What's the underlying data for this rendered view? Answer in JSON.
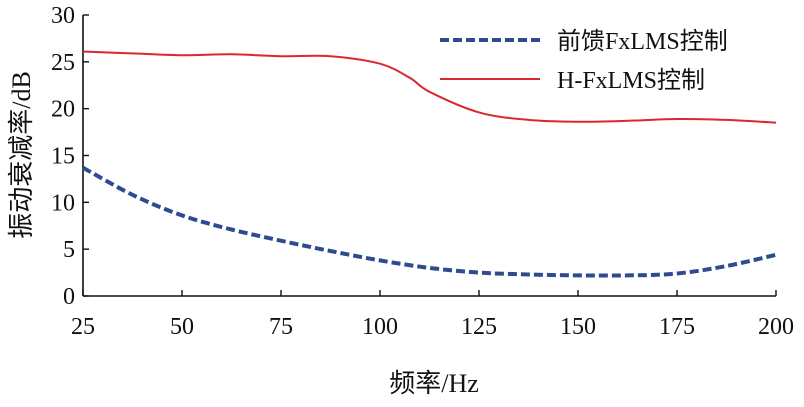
{
  "chart_data": {
    "type": "line",
    "xlabel": "频率/Hz",
    "ylabel": "振动衰减率/dB",
    "xlim": [
      25,
      200
    ],
    "ylim": [
      0,
      30
    ],
    "xticks": [
      25,
      50,
      75,
      100,
      125,
      150,
      175,
      200
    ],
    "yticks": [
      0,
      5,
      10,
      15,
      20,
      25,
      30
    ],
    "grid": false,
    "legend_position": "top-right",
    "series": [
      {
        "name": "前馈FxLMS控制",
        "color": "#2e4b8f",
        "style": "dashed",
        "x": [
          25,
          37.5,
          50,
          62.5,
          75,
          87.5,
          100,
          112.5,
          125,
          137.5,
          150,
          162.5,
          175,
          187.5,
          200
        ],
        "y": [
          13.7,
          10.8,
          8.6,
          7.1,
          5.9,
          4.8,
          3.8,
          3.0,
          2.5,
          2.3,
          2.2,
          2.2,
          2.4,
          3.2,
          4.4
        ]
      },
      {
        "name": "H-FxLMS控制",
        "color": "#d9282f",
        "style": "solid",
        "x": [
          25,
          37.5,
          50,
          62.5,
          75,
          87.5,
          100,
          107.5,
          112.5,
          125,
          137.5,
          150,
          162.5,
          175,
          187.5,
          200
        ],
        "y": [
          26.1,
          25.9,
          25.7,
          25.8,
          25.6,
          25.6,
          24.8,
          23.3,
          21.8,
          19.6,
          18.8,
          18.6,
          18.7,
          18.9,
          18.8,
          18.5
        ]
      }
    ]
  }
}
